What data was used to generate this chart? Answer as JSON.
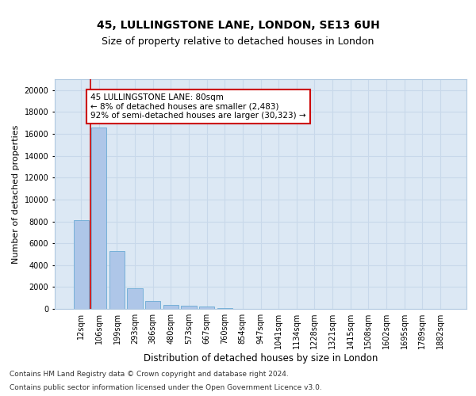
{
  "title_line1": "45, LULLINGSTONE LANE, LONDON, SE13 6UH",
  "title_line2": "Size of property relative to detached houses in London",
  "xlabel": "Distribution of detached houses by size in London",
  "ylabel": "Number of detached properties",
  "categories": [
    "12sqm",
    "106sqm",
    "199sqm",
    "293sqm",
    "386sqm",
    "480sqm",
    "573sqm",
    "667sqm",
    "760sqm",
    "854sqm",
    "947sqm",
    "1041sqm",
    "1134sqm",
    "1228sqm",
    "1321sqm",
    "1415sqm",
    "1508sqm",
    "1602sqm",
    "1695sqm",
    "1789sqm",
    "1882sqm"
  ],
  "values": [
    8100,
    16600,
    5300,
    1850,
    700,
    330,
    270,
    200,
    100,
    0,
    0,
    0,
    0,
    0,
    0,
    0,
    0,
    0,
    0,
    0,
    0
  ],
  "bar_color": "#aec6e8",
  "bar_edge_color": "#6aaad4",
  "vline_color": "#cc0000",
  "annotation_box_text": "45 LULLINGSTONE LANE: 80sqm\n← 8% of detached houses are smaller (2,483)\n92% of semi-detached houses are larger (30,323) →",
  "annotation_box_color": "#cc0000",
  "ylim": [
    0,
    21000
  ],
  "yticks": [
    0,
    2000,
    4000,
    6000,
    8000,
    10000,
    12000,
    14000,
    16000,
    18000,
    20000
  ],
  "grid_color": "#c8d8ea",
  "background_color": "#dce8f4",
  "footer_line1": "Contains HM Land Registry data © Crown copyright and database right 2024.",
  "footer_line2": "Contains public sector information licensed under the Open Government Licence v3.0.",
  "title_fontsize": 10,
  "subtitle_fontsize": 9,
  "xlabel_fontsize": 8.5,
  "ylabel_fontsize": 8,
  "tick_fontsize": 7,
  "ann_fontsize": 7.5,
  "footer_fontsize": 6.5
}
